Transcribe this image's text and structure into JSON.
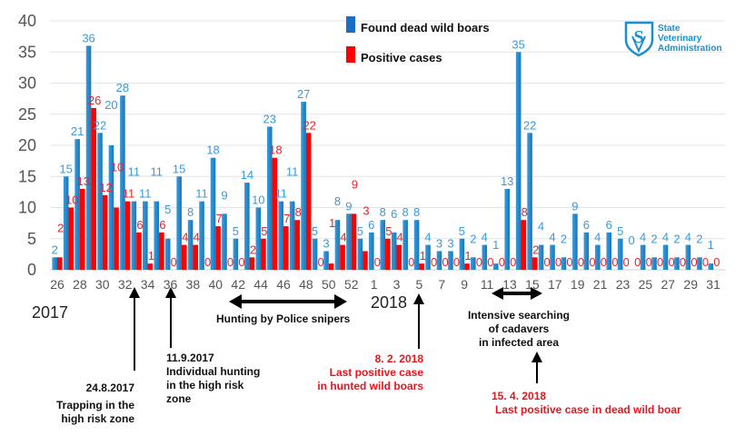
{
  "legend": {
    "found_label": "Found dead wild boars",
    "positive_label": "Positive cases"
  },
  "logo": {
    "lines": [
      "State",
      "Veterinary",
      "Administration"
    ]
  },
  "years": {
    "y2017": "2017",
    "y2018": "2018"
  },
  "annotations": {
    "trapping": {
      "date": "24.8.2017",
      "lines": [
        "Trapping in the",
        "high risk zone"
      ]
    },
    "individual": {
      "date": "11.9.2017",
      "lines": [
        "Individual hunting",
        "in the high risk",
        "zone"
      ]
    },
    "police": {
      "text": "Hunting by Police snipers"
    },
    "last_hunted": {
      "date": "8. 2. 2018",
      "lines": [
        "Last positive case",
        "in hunted wild boars"
      ]
    },
    "intensive": {
      "lines": [
        "Intensive searching",
        "of cadavers",
        "in infected area"
      ]
    },
    "last_dead": {
      "date": "15. 4. 2018",
      "text": "Last positive case in dead wild boar"
    }
  },
  "colors": {
    "found": "#1e88d0",
    "positive": "#ff0000",
    "found_label": "#3a9ad9",
    "positive_label": "#e8252a"
  },
  "chart_data": {
    "type": "bar",
    "title": "",
    "xlabel": "",
    "ylabel": "",
    "ylim": [
      0,
      40
    ],
    "yticks": [
      0,
      5,
      10,
      15,
      20,
      25,
      30,
      35,
      40
    ],
    "grid": true,
    "legend_position": "top-center",
    "categories": [
      "26",
      "27",
      "28",
      "29",
      "30",
      "31",
      "32",
      "33",
      "34",
      "35",
      "36",
      "37",
      "38",
      "39",
      "40",
      "41",
      "42",
      "43",
      "44",
      "45",
      "46",
      "47",
      "48",
      "49",
      "50",
      "51",
      "52",
      "53",
      "1",
      "2",
      "3",
      "4",
      "5",
      "6",
      "7",
      "8",
      "9",
      "10",
      "11",
      "12",
      "13",
      "14",
      "15",
      "16",
      "17",
      "18",
      "19",
      "20",
      "21",
      "22",
      "23",
      "24",
      "25",
      "26",
      "27",
      "28",
      "29",
      "30",
      "31"
    ],
    "xtick_labels": [
      "26",
      "28",
      "30",
      "32",
      "34",
      "36",
      "38",
      "40",
      "42",
      "44",
      "46",
      "48",
      "50",
      "52",
      "1",
      "3",
      "5",
      "7",
      "9",
      "11",
      "13",
      "15",
      "17",
      "19",
      "21",
      "23",
      "25",
      "27",
      "29",
      "31"
    ],
    "series": [
      {
        "name": "Found dead wild boars",
        "values": [
          2,
          15,
          21,
          36,
          22,
          20,
          28,
          11,
          11,
          11,
          5,
          15,
          8,
          11,
          18,
          9,
          5,
          14,
          10,
          23,
          11,
          11,
          27,
          5,
          3,
          8,
          9,
          5,
          6,
          8,
          6,
          8,
          8,
          4,
          3,
          3,
          5,
          2,
          4,
          1,
          13,
          35,
          22,
          4,
          4,
          2,
          9,
          6,
          4,
          6,
          5,
          0,
          4,
          2,
          4,
          2,
          4,
          2,
          1
        ]
      },
      {
        "name": "Positive cases",
        "values": [
          2,
          10,
          13,
          26,
          12,
          10,
          11,
          6,
          1,
          6,
          0,
          4,
          4,
          0,
          7,
          0,
          0,
          2,
          5,
          18,
          7,
          8,
          22,
          0,
          1,
          4,
          9,
          3,
          0,
          5,
          4,
          0,
          1,
          0,
          0,
          0,
          1,
          0,
          0,
          0,
          0,
          8,
          2,
          0,
          0,
          0,
          0,
          0,
          0,
          0,
          0,
          0,
          0,
          0,
          0,
          0,
          0,
          0,
          0
        ]
      }
    ]
  }
}
